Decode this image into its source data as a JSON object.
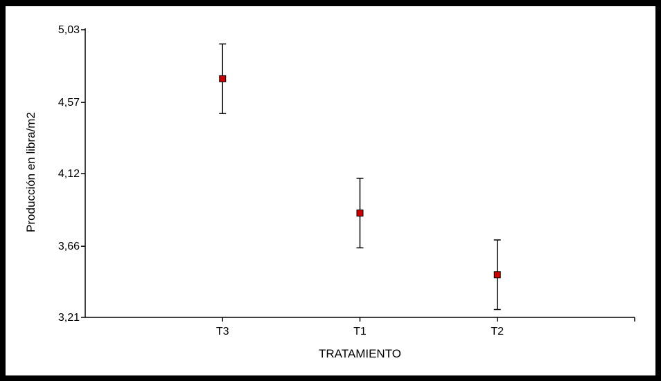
{
  "chart_data": {
    "type": "scatter",
    "subtype": "means with error bars",
    "title": "",
    "xlabel": "TRATAMIENTO",
    "ylabel": "Producción en libra/m2",
    "categories": [
      "T3",
      "T1",
      "T2"
    ],
    "series": [
      {
        "values": [
          4.72,
          3.87,
          3.48
        ],
        "error_low": [
          4.5,
          3.65,
          3.26
        ],
        "error_high": [
          4.94,
          4.09,
          3.7
        ],
        "marker_color": "#cc0000"
      }
    ],
    "ylim": [
      3.21,
      5.03
    ],
    "yticks": [
      3.21,
      3.66,
      4.12,
      4.57,
      5.03
    ],
    "ytick_labels": [
      "3,21",
      "3,66",
      "4,12",
      "4,57",
      "5,03"
    ],
    "grid": false,
    "legend": "none"
  }
}
